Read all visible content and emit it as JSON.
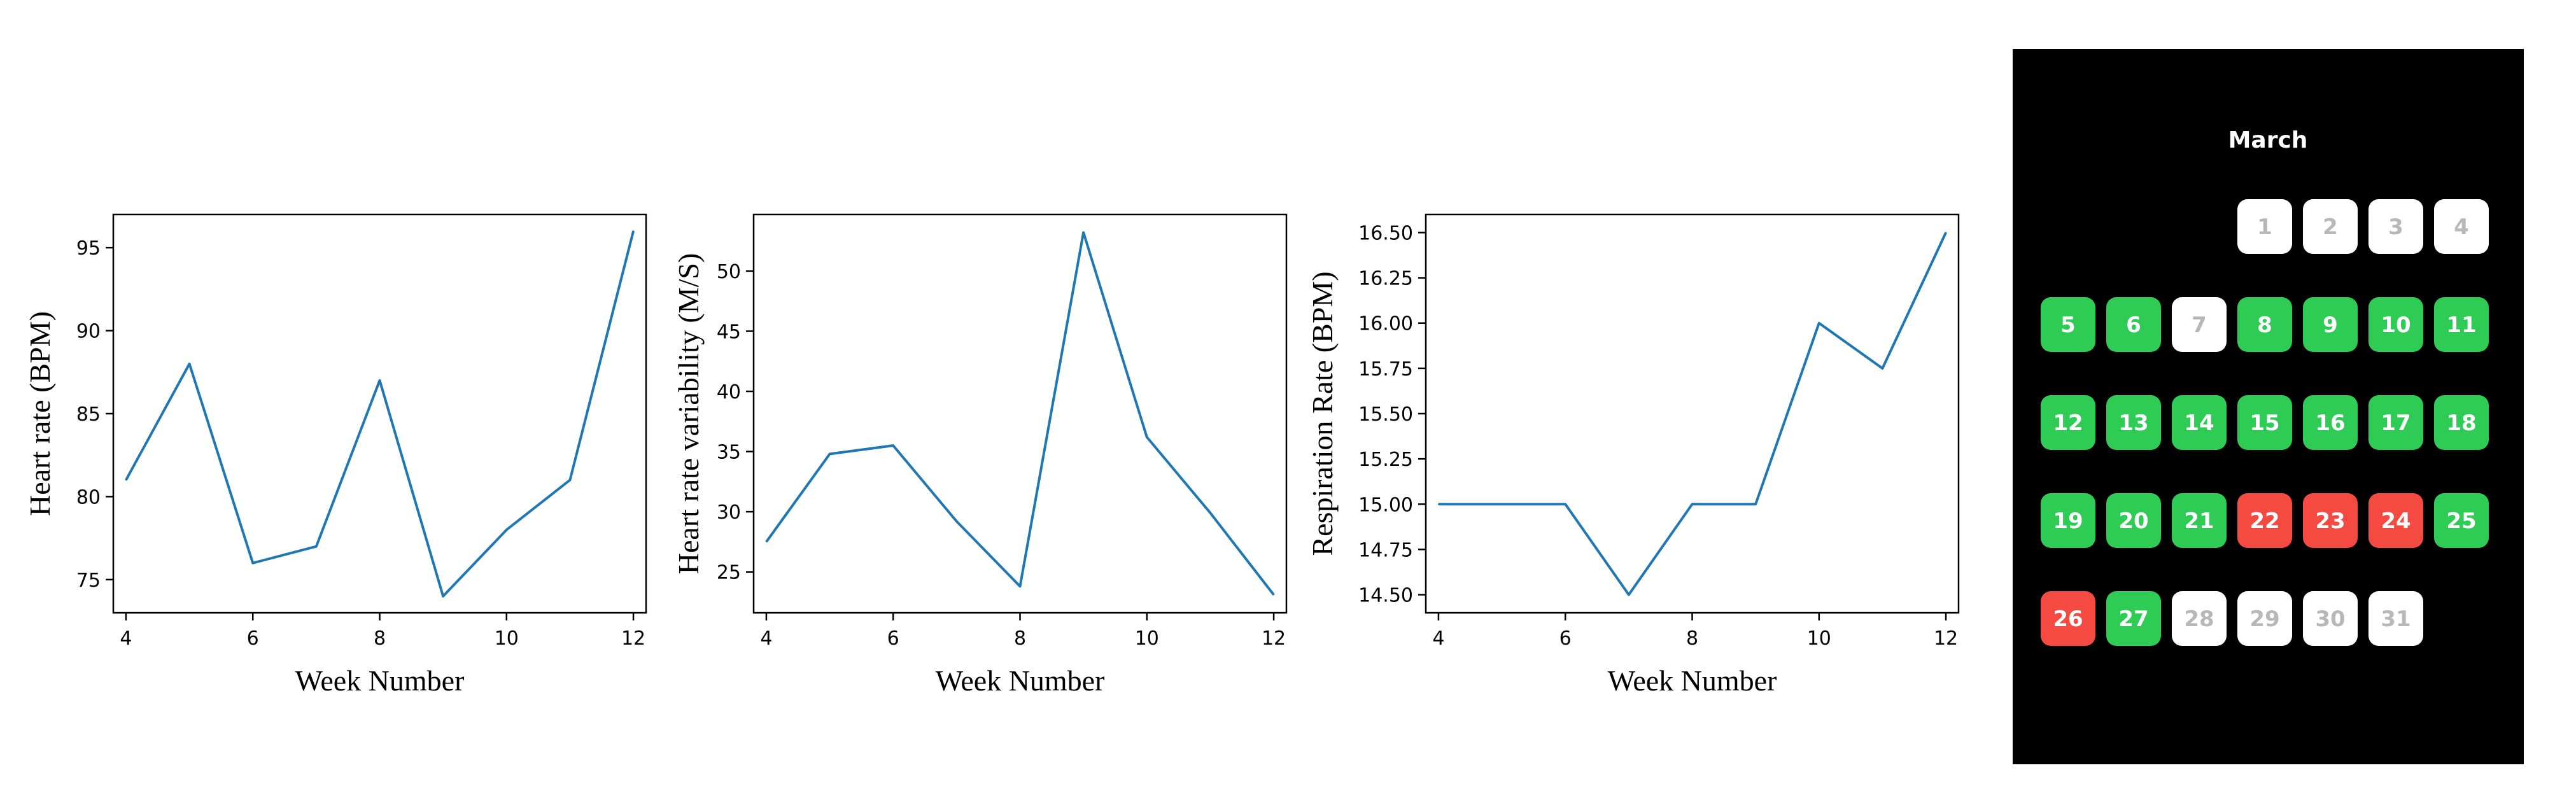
{
  "chart_data": [
    {
      "type": "line",
      "xlabel": "Week Number",
      "ylabel": "Heart rate (BPM)",
      "x": [
        4,
        5,
        6,
        7,
        8,
        9,
        10,
        11,
        12
      ],
      "series": [
        {
          "values": [
            81,
            88,
            76,
            77,
            87,
            74,
            78,
            81,
            96
          ]
        }
      ],
      "xlim": [
        3.8,
        12.2
      ],
      "ylim": [
        73,
        97
      ],
      "xticks": [
        4,
        6,
        8,
        10,
        12
      ],
      "yticks": [
        75,
        80,
        85,
        90,
        95
      ],
      "grid": false
    },
    {
      "type": "line",
      "xlabel": "Week Number",
      "ylabel": "Heart rate variability (M/S)",
      "x": [
        4,
        5,
        6,
        7,
        8,
        9,
        10,
        11,
        12
      ],
      "series": [
        {
          "values": [
            27.5,
            34.8,
            35.5,
            29.2,
            23.8,
            53.2,
            36.2,
            29.9,
            23.1
          ]
        }
      ],
      "xlim": [
        3.8,
        12.2
      ],
      "ylim": [
        21.6,
        54.7
      ],
      "xticks": [
        4,
        6,
        8,
        10,
        12
      ],
      "yticks": [
        25,
        30,
        35,
        40,
        45,
        50
      ],
      "grid": false
    },
    {
      "type": "line",
      "xlabel": "Week Number",
      "ylabel": "Respiration Rate (BPM)",
      "x": [
        4,
        5,
        6,
        7,
        8,
        9,
        10,
        11,
        12
      ],
      "series": [
        {
          "values": [
            15.0,
            15.0,
            15.0,
            14.5,
            15.0,
            15.0,
            16.0,
            15.75,
            16.5
          ]
        }
      ],
      "xlim": [
        3.8,
        12.2
      ],
      "ylim": [
        14.4,
        16.6
      ],
      "xticks": [
        4,
        6,
        8,
        10,
        12
      ],
      "yticks": [
        "14.50",
        "14.75",
        "15.00",
        "15.25",
        "15.50",
        "15.75",
        "16.00",
        "16.25",
        "16.50"
      ],
      "grid": false
    }
  ],
  "calendar": {
    "month": "March",
    "first_weekday_index": 3,
    "days": [
      {
        "d": "1",
        "status": "none"
      },
      {
        "d": "2",
        "status": "none"
      },
      {
        "d": "3",
        "status": "none"
      },
      {
        "d": "4",
        "status": "none"
      },
      {
        "d": "5",
        "status": "good"
      },
      {
        "d": "6",
        "status": "good"
      },
      {
        "d": "7",
        "status": "none"
      },
      {
        "d": "8",
        "status": "good"
      },
      {
        "d": "9",
        "status": "good"
      },
      {
        "d": "10",
        "status": "good"
      },
      {
        "d": "11",
        "status": "good"
      },
      {
        "d": "12",
        "status": "good"
      },
      {
        "d": "13",
        "status": "good"
      },
      {
        "d": "14",
        "status": "good"
      },
      {
        "d": "15",
        "status": "good"
      },
      {
        "d": "16",
        "status": "good"
      },
      {
        "d": "17",
        "status": "good"
      },
      {
        "d": "18",
        "status": "good"
      },
      {
        "d": "19",
        "status": "good"
      },
      {
        "d": "20",
        "status": "good"
      },
      {
        "d": "21",
        "status": "good"
      },
      {
        "d": "22",
        "status": "bad"
      },
      {
        "d": "23",
        "status": "bad"
      },
      {
        "d": "24",
        "status": "bad"
      },
      {
        "d": "25",
        "status": "good"
      },
      {
        "d": "26",
        "status": "bad"
      },
      {
        "d": "27",
        "status": "good"
      },
      {
        "d": "28",
        "status": "none"
      },
      {
        "d": "29",
        "status": "none"
      },
      {
        "d": "30",
        "status": "none"
      },
      {
        "d": "31",
        "status": "none"
      }
    ]
  },
  "colors": {
    "line": "#1f77b4",
    "good": "#2ecc55",
    "bad": "#f44a42",
    "none": "#ffffff",
    "none_text": "#b8b8b8",
    "calendar_bg": "#000000"
  }
}
